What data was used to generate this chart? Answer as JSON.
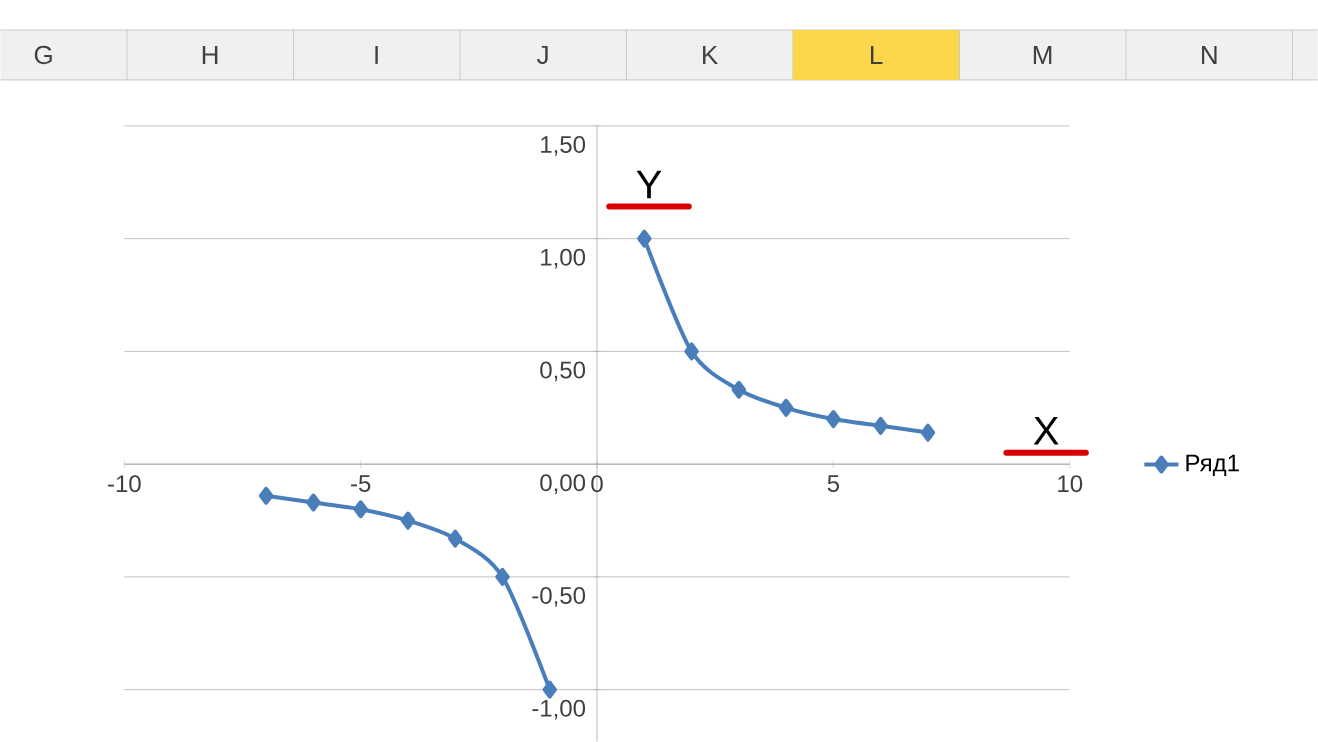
{
  "chart_data": {
    "type": "line",
    "x": [
      -7,
      -6,
      -5,
      -4,
      -3,
      -2,
      -1,
      0,
      1,
      2,
      3,
      4,
      5,
      6,
      7
    ],
    "series": [
      {
        "name": "Ряд1",
        "color": "#4a7ebb",
        "values": [
          -0.14,
          -0.17,
          -0.2,
          -0.25,
          -0.33,
          -0.5,
          -1,
          null,
          1,
          0.5,
          0.33,
          0.25,
          0.2,
          0.17,
          0.14
        ]
      }
    ],
    "xlim": [
      -10,
      10
    ],
    "xticks": [
      -10,
      -5,
      0,
      5,
      10
    ],
    "ylim": [
      -1.23,
      1.5
    ],
    "yticks": [
      {
        "value": -1,
        "label": "-1,00"
      },
      {
        "value": -0.5,
        "label": "-0,50"
      },
      {
        "value": 0,
        "label": "0,00"
      },
      {
        "value": 0.5,
        "label": "0,50"
      },
      {
        "value": 1,
        "label": "1,00"
      },
      {
        "value": 1.5,
        "label": "1,50"
      }
    ],
    "grid": "y",
    "legend": "right",
    "marker": "diamond",
    "line_style": "solid",
    "annotations": [
      "G",
      "H",
      "I",
      "J",
      "K",
      "L",
      "M",
      "N",
      "Y",
      "X"
    ]
  }
}
